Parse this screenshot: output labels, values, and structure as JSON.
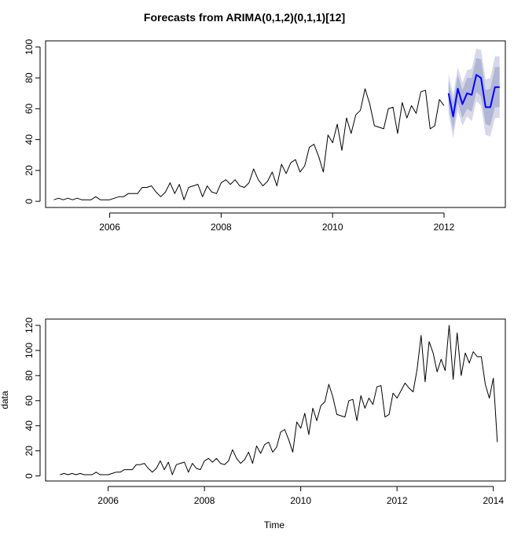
{
  "chart_data": [
    {
      "type": "line",
      "title": "Forecasts from ARIMA(0,1,2)(0,1,1)[12]",
      "xlabel": "",
      "ylabel": "",
      "xlim": [
        2004.85,
        2013.1
      ],
      "ylim": [
        -4,
        104
      ],
      "x_ticks": [
        2006,
        2008,
        2010,
        2012
      ],
      "x_tick_labels": [
        "2006",
        "2008",
        "2010",
        "2012"
      ],
      "y_ticks": [
        0,
        20,
        40,
        60,
        80,
        100
      ],
      "y_tick_labels": [
        "0",
        "20",
        "40",
        "60",
        "80",
        "100"
      ],
      "grid": false,
      "series": [
        {
          "kind": "history",
          "color": "#000000",
          "x_start": 2005.0,
          "step": 0.0833333,
          "values": [
            1,
            2,
            1,
            2,
            1,
            2,
            1,
            1,
            1,
            3,
            1,
            1,
            1,
            2,
            3,
            3,
            5,
            5,
            5,
            9,
            9,
            10,
            6,
            3,
            6,
            12,
            5,
            11,
            1,
            9,
            10,
            11,
            3,
            10,
            6,
            5,
            12,
            14,
            11,
            14,
            10,
            9,
            12,
            21,
            14,
            10,
            13,
            19,
            10,
            24,
            18,
            25,
            27,
            19,
            23,
            35,
            37,
            29,
            19,
            43,
            38,
            50,
            33,
            54,
            44,
            56,
            59,
            73,
            63,
            49,
            48,
            47,
            60,
            61,
            44,
            64,
            54,
            62,
            57,
            71,
            72,
            47,
            49,
            66,
            62
          ]
        },
        {
          "kind": "forecast",
          "color": "#0000ff",
          "x_start": 2012.08,
          "step": 0.0833333,
          "values": [
            70,
            55,
            73,
            63,
            70,
            69,
            82,
            80,
            61,
            61,
            74,
            74
          ],
          "lower80": [
            62,
            46,
            64,
            54,
            60,
            58,
            71,
            68,
            50,
            49,
            61,
            61
          ],
          "upper80": [
            78,
            64,
            82,
            72,
            80,
            80,
            93,
            92,
            72,
            73,
            87,
            87
          ],
          "lower95": [
            57,
            41,
            59,
            49,
            55,
            52,
            65,
            62,
            43,
            42,
            54,
            54
          ],
          "upper95": [
            83,
            69,
            87,
            77,
            85,
            86,
            99,
            98,
            79,
            80,
            94,
            94
          ]
        }
      ],
      "band_colors": {
        "ci95": "#d7d9e8",
        "ci80": "#b1b6d6"
      }
    },
    {
      "type": "line",
      "title": "",
      "xlabel": "Time",
      "ylabel": "data",
      "xlim": [
        2004.7,
        2014.25
      ],
      "ylim": [
        -4,
        125
      ],
      "x_ticks": [
        2006,
        2008,
        2010,
        2012,
        2014
      ],
      "x_tick_labels": [
        "2006",
        "2008",
        "2010",
        "2012",
        "2014"
      ],
      "y_ticks": [
        0,
        20,
        40,
        60,
        80,
        100,
        120
      ],
      "y_tick_labels": [
        "0",
        "20",
        "40",
        "60",
        "80",
        "100",
        "120"
      ],
      "grid": false,
      "series": [
        {
          "kind": "history",
          "color": "#000000",
          "x_start": 2005.0,
          "step": 0.0833333,
          "values": [
            1,
            2,
            1,
            2,
            1,
            2,
            1,
            1,
            1,
            3,
            1,
            1,
            1,
            2,
            3,
            3,
            5,
            5,
            5,
            9,
            9,
            10,
            6,
            3,
            6,
            12,
            5,
            11,
            1,
            9,
            10,
            11,
            3,
            10,
            6,
            5,
            12,
            14,
            11,
            14,
            10,
            9,
            12,
            21,
            14,
            10,
            13,
            19,
            10,
            24,
            18,
            25,
            27,
            19,
            23,
            35,
            37,
            29,
            19,
            43,
            38,
            50,
            33,
            54,
            44,
            56,
            59,
            73,
            63,
            49,
            48,
            47,
            60,
            61,
            44,
            64,
            54,
            62,
            57,
            71,
            72,
            47,
            49,
            66,
            62,
            68,
            74,
            70,
            67,
            85,
            112,
            75,
            107,
            98,
            83,
            93,
            84,
            120,
            77,
            114,
            80,
            98,
            90,
            99,
            95,
            95,
            73,
            62,
            78,
            27
          ]
        }
      ]
    }
  ]
}
